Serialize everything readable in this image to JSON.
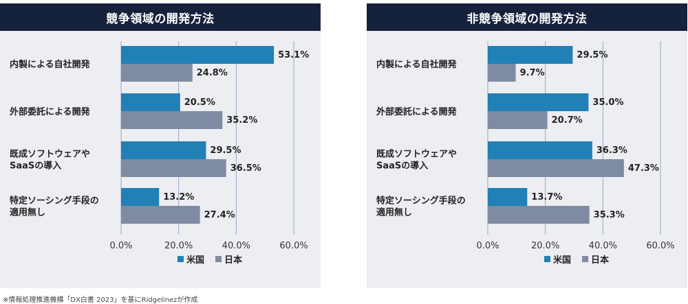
{
  "colors": {
    "us": "#2180b5",
    "jp": "#7e8ba2",
    "title_bg": "#16213c",
    "panel_bg": "#eceef2",
    "grid": "#9aa3c8"
  },
  "chart_data": [
    {
      "type": "bar",
      "orientation": "horizontal",
      "title": "競争領域の開発方法",
      "categories": [
        [
          "内製による自社開発"
        ],
        [
          "外部委託による開発"
        ],
        [
          "既成ソフトウェアや",
          "SaaSの導入"
        ],
        [
          "特定ソーシング手段の",
          "適用無し"
        ]
      ],
      "series": [
        {
          "name": "米国",
          "values": [
            53.1,
            20.5,
            29.5,
            13.2
          ],
          "labels": [
            "53.1%",
            "20.5%",
            "29.5%",
            "13.2%"
          ]
        },
        {
          "name": "日本",
          "values": [
            24.8,
            35.2,
            36.5,
            27.4
          ],
          "labels": [
            "24.8%",
            "35.2%",
            "36.5%",
            "27.4%"
          ]
        }
      ],
      "xlim": [
        0,
        60
      ],
      "xticks": [
        0,
        20,
        40,
        60
      ],
      "xtick_labels": [
        "0.0%",
        "20.0%",
        "40.0%",
        "60.0%"
      ],
      "legend": [
        "米国",
        "日本"
      ]
    },
    {
      "type": "bar",
      "orientation": "horizontal",
      "title": "非競争領域の開発方法",
      "categories": [
        [
          "内製による自社開発"
        ],
        [
          "外部委託による開発"
        ],
        [
          "既成ソフトウェアや",
          "SaaSの導入"
        ],
        [
          "特定ソーシング手段の",
          "適用無し"
        ]
      ],
      "series": [
        {
          "name": "米国",
          "values": [
            29.5,
            35.0,
            36.3,
            13.7
          ],
          "labels": [
            "29.5%",
            "35.0%",
            "36.3%",
            "13.7%"
          ]
        },
        {
          "name": "日本",
          "values": [
            9.7,
            20.7,
            47.3,
            35.3
          ],
          "labels": [
            "9.7%",
            "20.7%",
            "47.3%",
            "35.3%"
          ]
        }
      ],
      "xlim": [
        0,
        60
      ],
      "xticks": [
        0,
        20,
        40,
        60
      ],
      "xtick_labels": [
        "0.0%",
        "20.0%",
        "40.0%",
        "60.0%"
      ],
      "legend": [
        "米国",
        "日本"
      ]
    }
  ],
  "footnote": "※情報処理推進機構「DX白書 2023」を基にRidgelinezが作成"
}
